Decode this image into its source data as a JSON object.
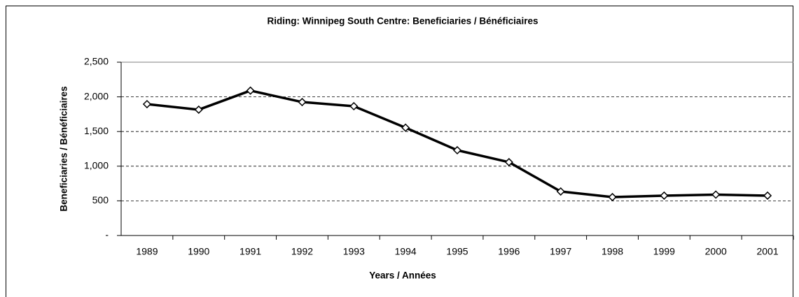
{
  "chart_data": {
    "type": "line",
    "title": "Riding:  Winnipeg South Centre:  Beneficiaries / Bénéficiaires",
    "x_label": "Years / Années",
    "y_label": "Beneficiaries / Bénéficiaires",
    "categories": [
      "1989",
      "1990",
      "1991",
      "1992",
      "1993",
      "1994",
      "1995",
      "1996",
      "1997",
      "1998",
      "1999",
      "2000",
      "2001"
    ],
    "series": [
      {
        "name": "Beneficiaries / Bénéficiaires",
        "color": "#000000",
        "values": [
          1895,
          1815,
          2090,
          1925,
          1865,
          1555,
          1230,
          1058,
          635,
          554,
          575,
          590,
          575
        ]
      }
    ],
    "ylim": [
      0,
      2500
    ],
    "yticks": [
      {
        "value": 0,
        "label": "-"
      },
      500,
      {
        "value": 1000,
        "label": "1,000"
      },
      {
        "value": 1500,
        "label": "1,500"
      },
      {
        "value": 2000,
        "label": "2,000"
      },
      {
        "value": 2500,
        "label": "2,500"
      }
    ],
    "grid": true
  }
}
